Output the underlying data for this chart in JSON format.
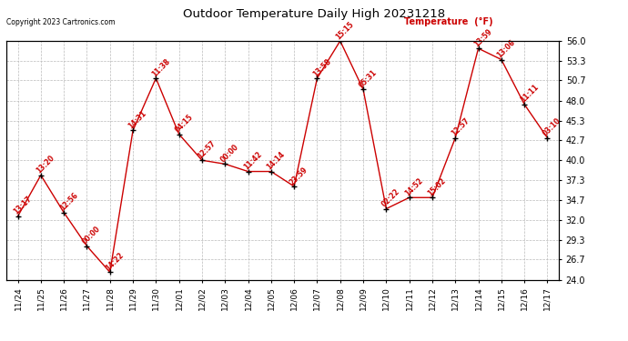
{
  "title": "Outdoor Temperature Daily High 20231218",
  "copyright": "Copyright 2023 Cartronics.com",
  "ylabel": "Temperature  (°F)",
  "dates": [
    "11/24",
    "11/25",
    "11/26",
    "11/27",
    "11/28",
    "11/29",
    "11/30",
    "12/01",
    "12/02",
    "12/03",
    "12/04",
    "12/05",
    "12/06",
    "12/07",
    "12/08",
    "12/09",
    "12/10",
    "12/11",
    "12/12",
    "12/13",
    "12/14",
    "12/15",
    "12/16",
    "12/17"
  ],
  "temps": [
    32.5,
    38.0,
    33.0,
    28.5,
    25.0,
    44.0,
    51.0,
    43.5,
    40.0,
    39.5,
    38.5,
    38.5,
    36.5,
    51.0,
    56.0,
    49.5,
    33.5,
    35.0,
    35.0,
    43.0,
    55.0,
    53.5,
    47.5,
    43.0
  ],
  "times": [
    "13:17",
    "13:20",
    "12:56",
    "00:00",
    "14:22",
    "14:31",
    "11:38",
    "04:15",
    "12:57",
    "00:00",
    "11:42",
    "14:14",
    "23:59",
    "13:58",
    "15:15",
    "05:31",
    "02:22",
    "14:52",
    "15:02",
    "12:57",
    "13:59",
    "13:06",
    "11:11",
    "03:10"
  ],
  "ylim": [
    24.0,
    56.0
  ],
  "yticks": [
    24.0,
    26.7,
    29.3,
    32.0,
    34.7,
    37.3,
    40.0,
    42.7,
    45.3,
    48.0,
    50.7,
    53.3,
    56.0
  ],
  "line_color": "#cc0000",
  "marker_color": "#000000",
  "label_color": "#cc0000",
  "bg_color": "#ffffff",
  "grid_color": "#bbbbbb",
  "title_color": "#000000",
  "copyright_color": "#000000",
  "ylabel_color": "#cc0000",
  "figsize": [
    6.9,
    3.75
  ],
  "dpi": 100
}
